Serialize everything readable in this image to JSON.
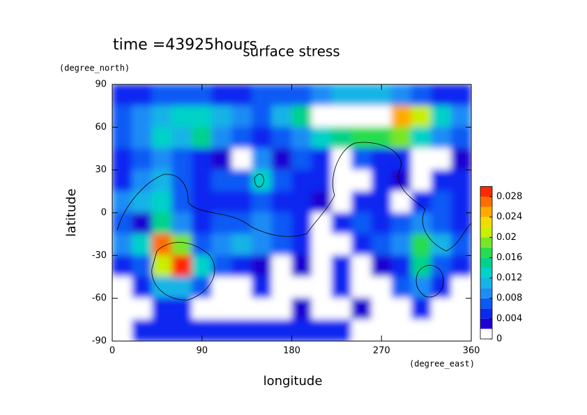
{
  "chart_data": {
    "type": "contour",
    "title": "surface stress",
    "subtitle": "time =43925hours",
    "x_label": "longitude",
    "y_label": "latitude",
    "x_unit": "(degree_east)",
    "y_unit": "(degree_north)",
    "x": [
      0,
      20,
      40,
      60,
      80,
      100,
      120,
      140,
      160,
      180,
      200,
      220,
      240,
      260,
      280,
      300,
      320,
      340,
      360
    ],
    "y": [
      90,
      75,
      60,
      45,
      30,
      15,
      0,
      -15,
      -30,
      -45,
      -60,
      -75,
      -90
    ],
    "z": [
      [
        0.005,
        0.005,
        0.006,
        0.006,
        0.006,
        0.005,
        0.005,
        0.006,
        0.006,
        0.006,
        0.008,
        0.01,
        0.01,
        0.01,
        0.008,
        0.006,
        0.005,
        0.005
      ],
      [
        0.006,
        0.008,
        0.01,
        0.012,
        0.012,
        0.01,
        0.008,
        0.006,
        0.01,
        0.014,
        0.03,
        0.032,
        0.032,
        0.03,
        0.024,
        0.02,
        0.012,
        0.008
      ],
      [
        0.006,
        0.008,
        0.012,
        0.01,
        0.014,
        0.008,
        0.006,
        0.005,
        0.006,
        0.008,
        0.012,
        0.014,
        0.016,
        0.016,
        0.018,
        0.012,
        0.008,
        0.006
      ],
      [
        0.004,
        0.006,
        0.008,
        0.006,
        0.004,
        0.003,
        0,
        0.008,
        0.003,
        0.006,
        0.005,
        0,
        0.006,
        0.004,
        0.004,
        0,
        0,
        0.003
      ],
      [
        0.005,
        0.008,
        0.01,
        0.006,
        0.004,
        0.006,
        0.006,
        0.012,
        0.006,
        0.004,
        0.004,
        0,
        0,
        0.004,
        0.003,
        0,
        0.004,
        0.005
      ],
      [
        0.008,
        0.01,
        0.012,
        0.006,
        0.004,
        0.004,
        0.005,
        0.006,
        0.005,
        0.004,
        0.003,
        0,
        0.004,
        0.004,
        0,
        0.004,
        0.006,
        0.004
      ],
      [
        0.006,
        0.003,
        0.014,
        0.008,
        0.004,
        0.006,
        0.006,
        0.008,
        0.006,
        0.004,
        0,
        0.004,
        0.006,
        0.004,
        0.006,
        0.008,
        0.006,
        0.004
      ],
      [
        0.008,
        0.012,
        0.026,
        0.018,
        0.006,
        0.008,
        0.01,
        0.008,
        0.006,
        0.004,
        0,
        0,
        0.004,
        0.006,
        0.008,
        0.016,
        0.01,
        0.006
      ],
      [
        0.004,
        0.006,
        0.02,
        0.028,
        0.012,
        0.006,
        0.004,
        0.003,
        0,
        0.003,
        0,
        0.004,
        0,
        0.003,
        0.004,
        0.014,
        0.006,
        0.004
      ],
      [
        0,
        0.005,
        0.01,
        0.01,
        0.006,
        0,
        0,
        0.004,
        0,
        0,
        0,
        0.004,
        0,
        0,
        0.006,
        0.008,
        0.004,
        0
      ],
      [
        0,
        0,
        0.004,
        0.004,
        0,
        0,
        0,
        0,
        0,
        0.003,
        0,
        0,
        0.003,
        0,
        0,
        0.004,
        0,
        0
      ],
      [
        0,
        0.004,
        0.004,
        0.004,
        0.004,
        0.004,
        0.004,
        0.004,
        0.004,
        0.004,
        0.004,
        0.004,
        0,
        0,
        0,
        0,
        0,
        0
      ]
    ],
    "xlim": [
      0,
      360
    ],
    "ylim": [
      -90,
      90
    ],
    "xticks": [
      0,
      90,
      180,
      270,
      360
    ],
    "yticks": [
      -90,
      -60,
      -30,
      0,
      30,
      60,
      90
    ],
    "colorbar_lim": [
      0,
      0.03
    ],
    "colorbar_ticks": [
      0,
      0.004,
      0.008,
      0.012,
      0.016,
      0.02,
      0.024,
      0.028
    ],
    "colors": [
      "#ffffff",
      "#1e00d2",
      "#0a28f0",
      "#0a5af5",
      "#1e8cf5",
      "#14b4e6",
      "#00d2c8",
      "#00d28c",
      "#28dc50",
      "#78e628",
      "#c8f000",
      "#f0dc00",
      "#ffaa00",
      "#ff6e00",
      "#ff2800"
    ],
    "over_color": "#ffffff"
  }
}
